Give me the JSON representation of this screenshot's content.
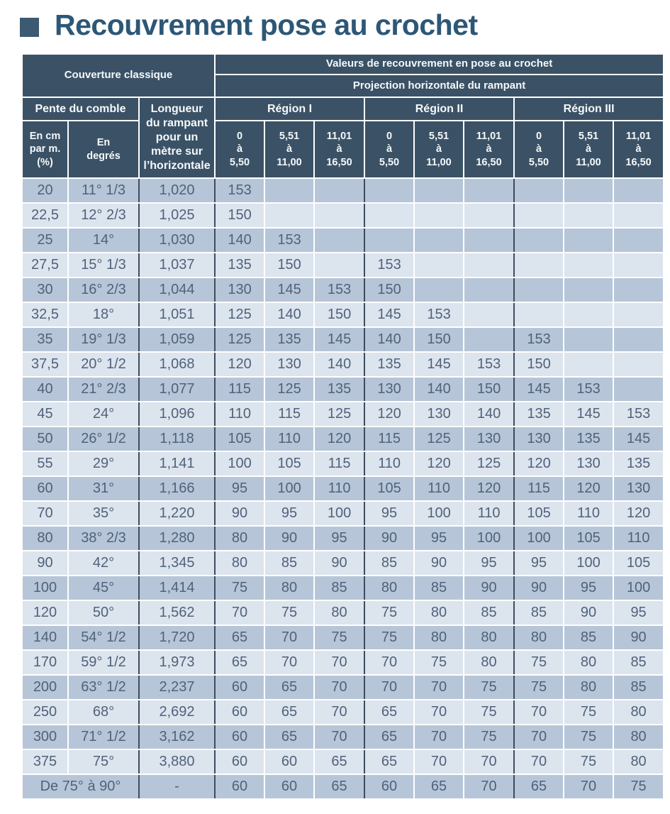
{
  "title": {
    "square_color": "#3d5a73",
    "text": "Recouvrement pose au crochet"
  },
  "colors": {
    "header_bg": "#3b5266",
    "header_text": "#f5f8fa",
    "row_dark": "#b6c6d8",
    "row_light": "#dce4ee",
    "body_text": "#50627a",
    "heavy_line": "#3e4d5e",
    "title_text": "#2d5776"
  },
  "table": {
    "header": {
      "couverture": "Couverture classique",
      "valeurs": "Valeurs de recouvrement en pose au crochet",
      "projection": "Projection horizontale du rampant",
      "pente": "Pente du comble",
      "longueur": "Longueur\ndu rampant\npour un\nmètre sur\nl’horizontale",
      "en_cm": "En cm\npar m.\n(%)",
      "en_degres": "En\ndegrés",
      "region1": "Région I",
      "region2": "Région II",
      "region3": "Région III",
      "range1": "0\nà\n5,50",
      "range2": "5,51\nà\n11,00",
      "range3": "11,01\nà\n16,50"
    },
    "rows": [
      {
        "cm": "20",
        "deg": "11° 1/3",
        "long": "1,020",
        "v": [
          "153",
          "",
          "",
          "",
          "",
          "",
          "",
          "",
          ""
        ]
      },
      {
        "cm": "22,5",
        "deg": "12° 2/3",
        "long": "1,025",
        "v": [
          "150",
          "",
          "",
          "",
          "",
          "",
          "",
          "",
          ""
        ]
      },
      {
        "cm": "25",
        "deg": "14°",
        "long": "1,030",
        "v": [
          "140",
          "153",
          "",
          "",
          "",
          "",
          "",
          "",
          ""
        ]
      },
      {
        "cm": "27,5",
        "deg": "15° 1/3",
        "long": "1,037",
        "v": [
          "135",
          "150",
          "",
          "153",
          "",
          "",
          "",
          "",
          ""
        ]
      },
      {
        "cm": "30",
        "deg": "16° 2/3",
        "long": "1,044",
        "v": [
          "130",
          "145",
          "153",
          "150",
          "",
          "",
          "",
          "",
          ""
        ]
      },
      {
        "cm": "32,5",
        "deg": "18°",
        "long": "1,051",
        "v": [
          "125",
          "140",
          "150",
          "145",
          "153",
          "",
          "",
          "",
          ""
        ]
      },
      {
        "cm": "35",
        "deg": "19° 1/3",
        "long": "1,059",
        "v": [
          "125",
          "135",
          "145",
          "140",
          "150",
          "",
          "153",
          "",
          ""
        ]
      },
      {
        "cm": "37,5",
        "deg": "20° 1/2",
        "long": "1,068",
        "v": [
          "120",
          "130",
          "140",
          "135",
          "145",
          "153",
          "150",
          "",
          ""
        ]
      },
      {
        "cm": "40",
        "deg": "21° 2/3",
        "long": "1,077",
        "v": [
          "115",
          "125",
          "135",
          "130",
          "140",
          "150",
          "145",
          "153",
          ""
        ]
      },
      {
        "cm": "45",
        "deg": "24°",
        "long": "1,096",
        "v": [
          "110",
          "115",
          "125",
          "120",
          "130",
          "140",
          "135",
          "145",
          "153"
        ]
      },
      {
        "cm": "50",
        "deg": "26° 1/2",
        "long": "1,118",
        "v": [
          "105",
          "110",
          "120",
          "115",
          "125",
          "130",
          "130",
          "135",
          "145"
        ]
      },
      {
        "cm": "55",
        "deg": "29°",
        "long": "1,141",
        "v": [
          "100",
          "105",
          "115",
          "110",
          "120",
          "125",
          "120",
          "130",
          "135"
        ]
      },
      {
        "cm": "60",
        "deg": "31°",
        "long": "1,166",
        "v": [
          "95",
          "100",
          "110",
          "105",
          "110",
          "120",
          "115",
          "120",
          "130"
        ]
      },
      {
        "cm": "70",
        "deg": "35°",
        "long": "1,220",
        "v": [
          "90",
          "95",
          "100",
          "95",
          "100",
          "110",
          "105",
          "110",
          "120"
        ]
      },
      {
        "cm": "80",
        "deg": "38° 2/3",
        "long": "1,280",
        "v": [
          "80",
          "90",
          "95",
          "90",
          "95",
          "100",
          "100",
          "105",
          "110"
        ]
      },
      {
        "cm": "90",
        "deg": "42°",
        "long": "1,345",
        "v": [
          "80",
          "85",
          "90",
          "85",
          "90",
          "95",
          "95",
          "100",
          "105"
        ]
      },
      {
        "cm": "100",
        "deg": "45°",
        "long": "1,414",
        "v": [
          "75",
          "80",
          "85",
          "80",
          "85",
          "90",
          "90",
          "95",
          "100"
        ]
      },
      {
        "cm": "120",
        "deg": "50°",
        "long": "1,562",
        "v": [
          "70",
          "75",
          "80",
          "75",
          "80",
          "85",
          "85",
          "90",
          "95"
        ]
      },
      {
        "cm": "140",
        "deg": "54° 1/2",
        "long": "1,720",
        "v": [
          "65",
          "70",
          "75",
          "75",
          "80",
          "80",
          "80",
          "85",
          "90"
        ]
      },
      {
        "cm": "170",
        "deg": "59° 1/2",
        "long": "1,973",
        "v": [
          "65",
          "70",
          "70",
          "70",
          "75",
          "80",
          "75",
          "80",
          "85"
        ]
      },
      {
        "cm": "200",
        "deg": "63° 1/2",
        "long": "2,237",
        "v": [
          "60",
          "65",
          "70",
          "70",
          "70",
          "75",
          "75",
          "80",
          "85"
        ]
      },
      {
        "cm": "250",
        "deg": "68°",
        "long": "2,692",
        "v": [
          "60",
          "65",
          "70",
          "65",
          "70",
          "75",
          "70",
          "75",
          "80"
        ]
      },
      {
        "cm": "300",
        "deg": "71° 1/2",
        "long": "3,162",
        "v": [
          "60",
          "65",
          "70",
          "65",
          "70",
          "75",
          "70",
          "75",
          "80"
        ]
      },
      {
        "cm": "375",
        "deg": "75°",
        "long": "3,880",
        "v": [
          "60",
          "60",
          "65",
          "65",
          "70",
          "70",
          "70",
          "75",
          "80"
        ]
      }
    ],
    "footer_row": {
      "label": "De 75° à 90°",
      "long": "-",
      "v": [
        "60",
        "60",
        "65",
        "60",
        "65",
        "70",
        "65",
        "70",
        "75"
      ]
    }
  }
}
